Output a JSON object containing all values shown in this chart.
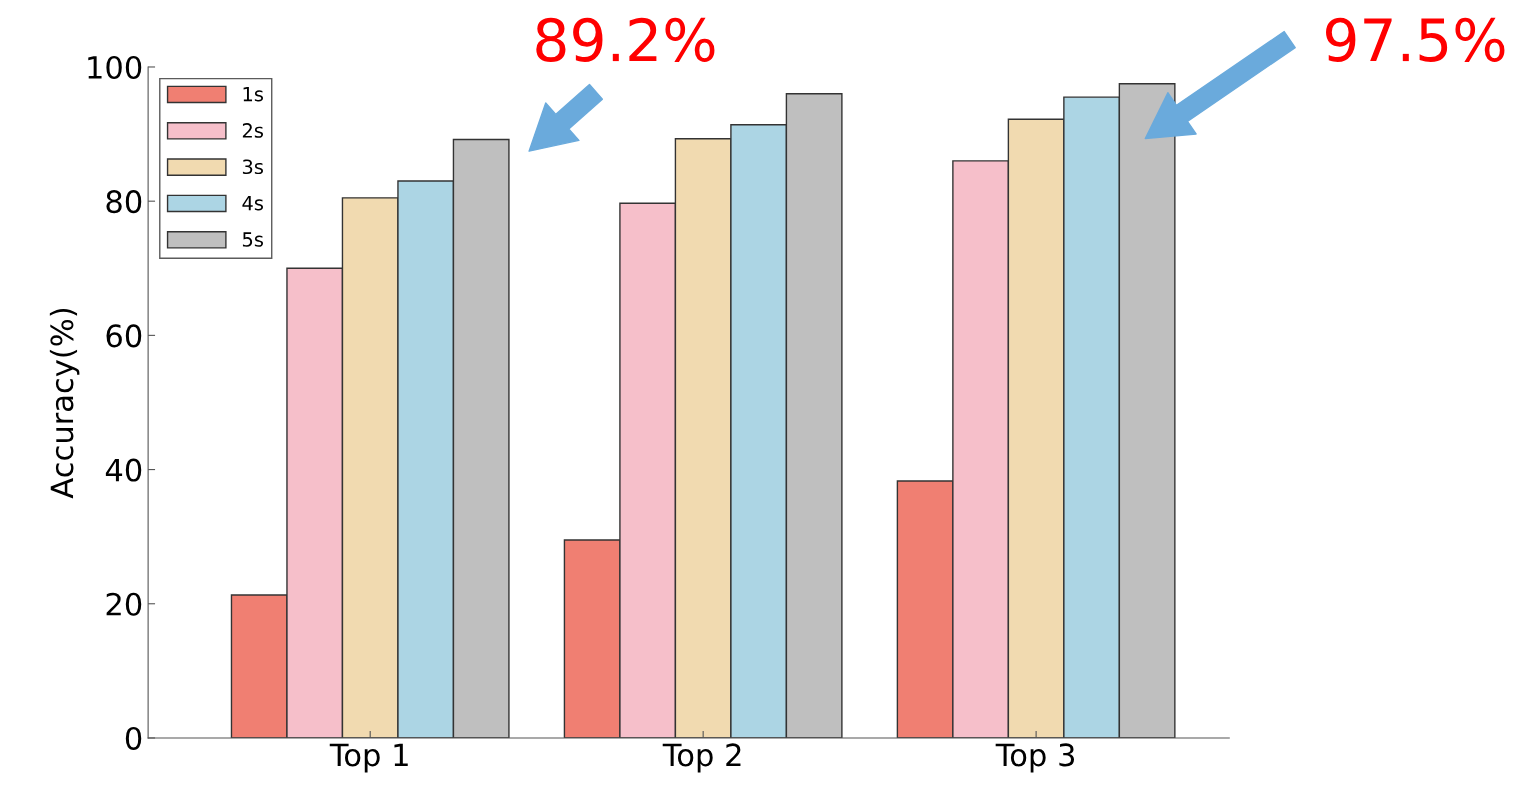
{
  "chart_data": {
    "type": "bar",
    "ylabel": "Accuracy(%)",
    "categories": [
      "Top 1",
      "Top 2",
      "Top 3"
    ],
    "series": [
      {
        "name": "1s",
        "color": "#f07f72",
        "values": [
          21.3,
          29.5,
          38.3
        ]
      },
      {
        "name": "2s",
        "color": "#f6bfca",
        "values": [
          70.0,
          79.7,
          86.0
        ]
      },
      {
        "name": "3s",
        "color": "#f1dab0",
        "values": [
          80.5,
          89.3,
          92.2
        ]
      },
      {
        "name": "4s",
        "color": "#acd5e4",
        "values": [
          83.0,
          91.4,
          95.5
        ]
      },
      {
        "name": "5s",
        "color": "#bfbfbf",
        "values": [
          89.2,
          96.0,
          97.5
        ]
      }
    ],
    "ylim": [
      0,
      100
    ],
    "yticks": [
      0,
      20,
      40,
      60,
      80,
      100
    ],
    "grid": false,
    "legend": "top left",
    "annotations": [
      "89.2%",
      "97.5%"
    ]
  }
}
